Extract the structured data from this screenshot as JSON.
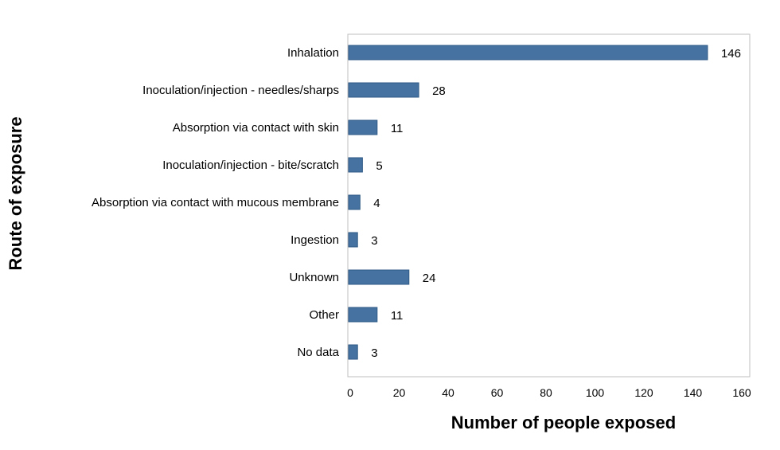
{
  "chart_data": {
    "type": "bar",
    "orientation": "horizontal",
    "title": "",
    "xlabel": "Number of people exposed",
    "ylabel": "Route of exposure",
    "categories": [
      "Inhalation",
      "Inoculation/injection - needles/sharps",
      "Absorption via contact with skin",
      "Inoculation/injection - bite/scratch",
      "Absorption via contact with mucous membrane",
      "Ingestion",
      "Unknown",
      "Other",
      "No data"
    ],
    "values": [
      146,
      28,
      11,
      5,
      4,
      3,
      24,
      11,
      3
    ],
    "value_labels": [
      "146",
      "28",
      "11",
      "5",
      "4",
      "3",
      "24",
      "11",
      "3"
    ],
    "xlim": [
      0,
      160
    ],
    "xticks": [
      0,
      20,
      40,
      60,
      80,
      100,
      120,
      140,
      160
    ],
    "xtick_labels": [
      "0",
      "20",
      "40",
      "60",
      "80",
      "100",
      "120",
      "140",
      "160"
    ],
    "grid": false,
    "legend": "none",
    "colors": {
      "bar": "#4672a1",
      "bar_border": "#2f5a86",
      "frame": "#bfbfbf"
    }
  }
}
